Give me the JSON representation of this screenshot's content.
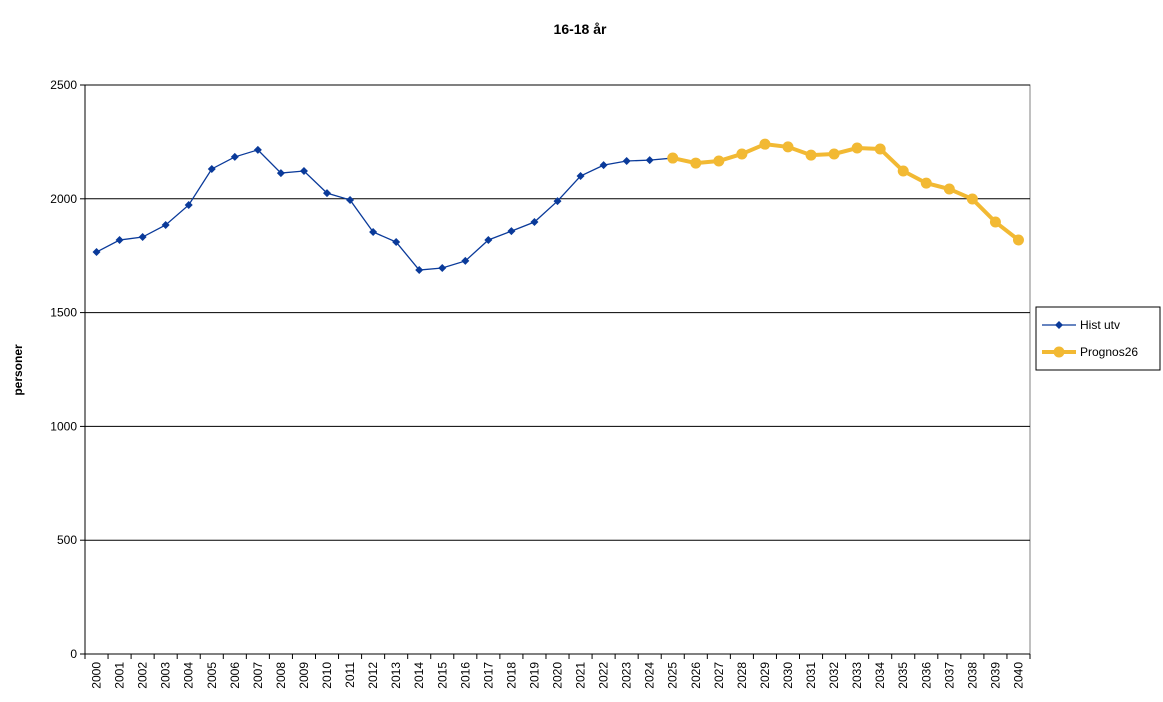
{
  "chart_data": {
    "type": "line",
    "title": "16-18 år",
    "y_label": "personer",
    "categories": [
      "2000",
      "2001",
      "2002",
      "2003",
      "2004",
      "2005",
      "2006",
      "2007",
      "2008",
      "2009",
      "2010",
      "2011",
      "2012",
      "2013",
      "2014",
      "2015",
      "2016",
      "2017",
      "2018",
      "2019",
      "2020",
      "2021",
      "2022",
      "2023",
      "2024",
      "2025",
      "2026",
      "2027",
      "2028",
      "2029",
      "2030",
      "2031",
      "2032",
      "2033",
      "2034",
      "2035",
      "2036",
      "2037",
      "2038",
      "2039",
      "2040"
    ],
    "series": [
      {
        "name": "Hist utv",
        "color": "#0a3a9a",
        "marker": "diamond",
        "values": [
          1766,
          1819,
          1832,
          1885,
          1973,
          2131,
          2184,
          2215,
          2113,
          2122,
          2025,
          1995,
          1854,
          1810,
          1687,
          1696,
          1727,
          1819,
          1858,
          1898,
          1990,
          2100,
          2148,
          2166,
          2170,
          2179,
          null,
          null,
          null,
          null,
          null,
          null,
          null,
          null,
          null,
          null,
          null,
          null,
          null,
          null,
          null
        ]
      },
      {
        "name": "Prognos26",
        "color": "#f2b933",
        "marker": "circle",
        "values": [
          null,
          null,
          null,
          null,
          null,
          null,
          null,
          null,
          null,
          null,
          null,
          null,
          null,
          null,
          null,
          null,
          null,
          null,
          null,
          null,
          null,
          null,
          null,
          null,
          null,
          2179,
          2157,
          2166,
          2197,
          2240,
          2228,
          2192,
          2197,
          2223,
          2219,
          2122,
          2069,
          2043,
          1999,
          1898,
          1819
        ]
      }
    ],
    "ylim": [
      0,
      2500
    ],
    "yticks": [
      0,
      500,
      1000,
      1500,
      2000,
      2500
    ],
    "grid": true,
    "legend": "right"
  }
}
